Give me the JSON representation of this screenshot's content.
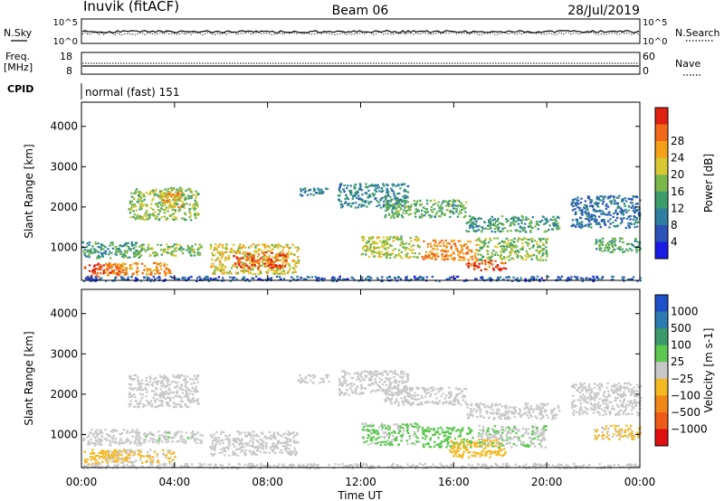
{
  "header": {
    "station": "Inuvik (fitACF)",
    "beam": "Beam 06",
    "date": "28/Jul/2019"
  },
  "top_panels": {
    "nsky_label": "N.Sky",
    "nsearch_label": "N.Search",
    "noise_tick_hi": "10^5",
    "noise_tick_lo": "10^0",
    "freq_label_1": "Freq.",
    "freq_label_2": "[MHz]",
    "freq_tick_hi": "18",
    "freq_tick_lo": "8",
    "nave_label": "Nave",
    "nave_tick_hi": "60",
    "nave_tick_lo": "0",
    "cpid_label": "CPID",
    "cpid_value": "normal (fast) 151"
  },
  "axes": {
    "ylabel": "Slant Range [km]",
    "xlabel": "Time UT",
    "yticks": [
      "1000",
      "2000",
      "3000",
      "4000"
    ],
    "xticks": [
      "00:00",
      "04:00",
      "08:00",
      "12:00",
      "16:00",
      "20:00",
      "00:00"
    ]
  },
  "chart_data": [
    {
      "type": "heatmap",
      "title": "",
      "xlabel": "",
      "ylabel": "Slant Range [km]",
      "x_range_hours": [
        0,
        24
      ],
      "y_range_km": [
        180,
        4600
      ],
      "colorbar": {
        "label": "Power [dB]",
        "ticks": [
          "4",
          "8",
          "12",
          "16",
          "20",
          "24",
          "28"
        ],
        "range": [
          0,
          32
        ],
        "colors": [
          "#1a1ae6",
          "#2a52b8",
          "#2f7fa0",
          "#3e9e6a",
          "#7ab84a",
          "#d8c730",
          "#f4a018",
          "#f06818",
          "#e02010"
        ]
      },
      "regions": [
        {
          "t": [
            0.1,
            1.8
          ],
          "r": [
            280,
            620
          ],
          "value": 28
        },
        {
          "t": [
            1.0,
            3.8
          ],
          "r": [
            320,
            640
          ],
          "value": 24
        },
        {
          "t": [
            0.0,
            2.5
          ],
          "r": [
            750,
            1150
          ],
          "value": 12
        },
        {
          "t": [
            2.3,
            5.2
          ],
          "r": [
            800,
            1100
          ],
          "value": 16
        },
        {
          "t": [
            5.5,
            9.3
          ],
          "r": [
            350,
            1100
          ],
          "value": 20
        },
        {
          "t": [
            6.5,
            8.8
          ],
          "r": [
            500,
            900
          ],
          "value": 28
        },
        {
          "t": [
            2.0,
            5.0
          ],
          "r": [
            1700,
            2500
          ],
          "value": 16
        },
        {
          "t": [
            3.3,
            4.3
          ],
          "r": [
            2000,
            2400
          ],
          "value": 22
        },
        {
          "t": [
            9.3,
            10.6
          ],
          "r": [
            2300,
            2500
          ],
          "value": 10
        },
        {
          "t": [
            11.0,
            14.0
          ],
          "r": [
            2000,
            2600
          ],
          "value": 10
        },
        {
          "t": [
            13.0,
            16.5
          ],
          "r": [
            1750,
            2200
          ],
          "value": 14
        },
        {
          "t": [
            16.5,
            20.5
          ],
          "r": [
            1400,
            1800
          ],
          "value": 12
        },
        {
          "t": [
            21.0,
            24.0
          ],
          "r": [
            1500,
            2300
          ],
          "value": 8
        },
        {
          "t": [
            12.0,
            14.5
          ],
          "r": [
            750,
            1300
          ],
          "value": 18
        },
        {
          "t": [
            14.6,
            17.0
          ],
          "r": [
            700,
            1200
          ],
          "value": 24
        },
        {
          "t": [
            16.5,
            18.2
          ],
          "r": [
            450,
            700
          ],
          "value": 28
        },
        {
          "t": [
            17.0,
            20.0
          ],
          "r": [
            700,
            1250
          ],
          "value": 16
        },
        {
          "t": [
            22.0,
            24.0
          ],
          "r": [
            900,
            1250
          ],
          "value": 14
        },
        {
          "t": [
            0.0,
            24.0
          ],
          "r": [
            180,
            300
          ],
          "value": 6
        }
      ]
    },
    {
      "type": "heatmap",
      "title": "",
      "xlabel": "Time UT",
      "ylabel": "Slant Range [km]",
      "x_range_hours": [
        0,
        24
      ],
      "y_range_km": [
        180,
        4600
      ],
      "colorbar": {
        "label": "Velocity [m s-1]",
        "ticks": [
          "1000",
          "500",
          "100",
          "25",
          "−25",
          "−100",
          "−500",
          "−1000"
        ],
        "range": [
          -1200,
          1200
        ],
        "colors": [
          "#2050c8",
          "#2d7cb0",
          "#3c9a6a",
          "#5cc850",
          "#c8c8c8",
          "#f4b820",
          "#f08818",
          "#ee5a18",
          "#e01010"
        ]
      },
      "regions": [
        {
          "t": [
            0.1,
            2.0
          ],
          "r": [
            280,
            650
          ],
          "value": -300
        },
        {
          "t": [
            1.0,
            4.0
          ],
          "r": [
            320,
            640
          ],
          "value": -150
        },
        {
          "t": [
            0.0,
            2.5
          ],
          "r": [
            750,
            1150
          ],
          "value": -60
        },
        {
          "t": [
            2.3,
            5.2
          ],
          "r": [
            800,
            1100
          ],
          "value": 80
        },
        {
          "t": [
            5.5,
            9.3
          ],
          "r": [
            500,
            1100
          ],
          "value": 0
        },
        {
          "t": [
            2.0,
            5.0
          ],
          "r": [
            1700,
            2500
          ],
          "value": 0
        },
        {
          "t": [
            9.3,
            10.6
          ],
          "r": [
            2300,
            2500
          ],
          "value": 0
        },
        {
          "t": [
            11.0,
            14.0
          ],
          "r": [
            2000,
            2600
          ],
          "value": 0
        },
        {
          "t": [
            13.0,
            16.5
          ],
          "r": [
            1750,
            2200
          ],
          "value": 0
        },
        {
          "t": [
            16.5,
            20.5
          ],
          "r": [
            1400,
            1800
          ],
          "value": 0
        },
        {
          "t": [
            21.0,
            24.0
          ],
          "r": [
            1500,
            2300
          ],
          "value": 0
        },
        {
          "t": [
            12.0,
            14.5
          ],
          "r": [
            750,
            1300
          ],
          "value": 150
        },
        {
          "t": [
            14.6,
            16.8
          ],
          "r": [
            700,
            1200
          ],
          "value": 200
        },
        {
          "t": [
            15.8,
            18.2
          ],
          "r": [
            450,
            900
          ],
          "value": -250
        },
        {
          "t": [
            17.0,
            20.0
          ],
          "r": [
            700,
            1250
          ],
          "value": 120
        },
        {
          "t": [
            22.0,
            24.0
          ],
          "r": [
            900,
            1250
          ],
          "value": -150
        },
        {
          "t": [
            0.0,
            24.0
          ],
          "r": [
            180,
            300
          ],
          "value": -60
        }
      ]
    }
  ]
}
